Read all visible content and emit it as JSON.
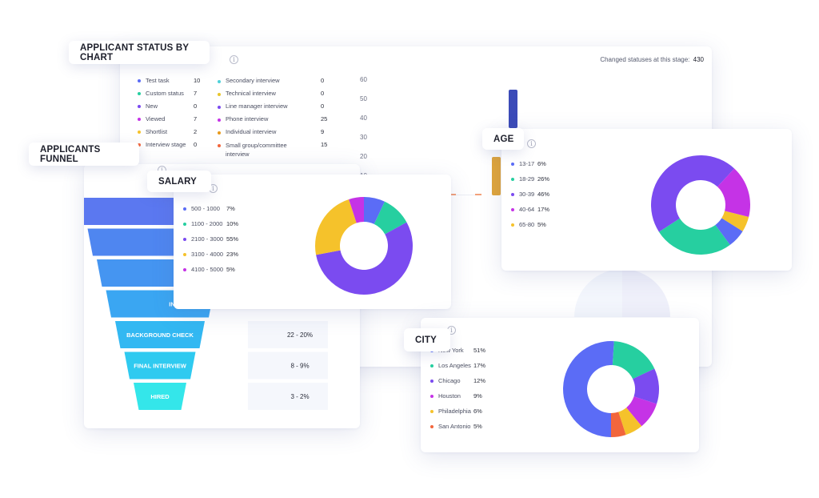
{
  "applicant_status": {
    "tag": "APPLICANT STATUS BY CHART",
    "changed_label": "Changed statuses at this stage:",
    "changed_value": "430",
    "left_items": [
      {
        "label": "Test task",
        "value": "10",
        "color": "#5b6cf6"
      },
      {
        "label": "Custom status",
        "value": "7",
        "color": "#26cfa0"
      },
      {
        "label": "New",
        "value": "0",
        "color": "#7b4bf0"
      },
      {
        "label": "Viewed",
        "value": "7",
        "color": "#c533e6"
      },
      {
        "label": "Shortlist",
        "value": "2",
        "color": "#f5c22b"
      },
      {
        "label": "Interview stage",
        "value": "0",
        "color": "#f2663c"
      }
    ],
    "right_items": [
      {
        "label": "Secondary interview",
        "value": "0",
        "color": "#4fd1d9"
      },
      {
        "label": "Technical interview",
        "value": "0",
        "color": "#e8c62c"
      },
      {
        "label": "Line manager interview",
        "value": "0",
        "color": "#7b4bf0"
      },
      {
        "label": "Phone interview",
        "value": "25",
        "color": "#c533e6"
      },
      {
        "label": "Individual interview",
        "value": "9",
        "color": "#e89a1c"
      },
      {
        "label": "Small group/committee interview",
        "value": "15",
        "color": "#f2663c"
      }
    ],
    "y_ticks": [
      "60",
      "50",
      "40",
      "30",
      "20",
      "10"
    ]
  },
  "funnel": {
    "tag": "APPLICANTS FUNNEL",
    "stages": [
      {
        "label": "",
        "value": ""
      },
      {
        "label": "",
        "value": ""
      },
      {
        "label": "",
        "value": ""
      },
      {
        "label": "IN",
        "value": ""
      },
      {
        "label": "BACKGROUND CHECK",
        "value": "22 - 20%"
      },
      {
        "label": "FINAL INTERVIEW",
        "value": "8 - 9%"
      },
      {
        "label": "HIRED",
        "value": "3 - 2%"
      }
    ]
  },
  "salary": {
    "tag": "SALARY",
    "items": [
      {
        "label": "500 - 1000",
        "value": "7%",
        "color": "#5b6cf6"
      },
      {
        "label": "1100 - 2000",
        "value": "10%",
        "color": "#26cfa0"
      },
      {
        "label": "2100 - 3000",
        "value": "55%",
        "color": "#7b4bf0"
      },
      {
        "label": "3100 - 4000",
        "value": "23%",
        "color": "#f5c22b"
      },
      {
        "label": "4100 - 5000",
        "value": "5%",
        "color": "#c533e6"
      }
    ]
  },
  "age": {
    "tag": "AGE",
    "items": [
      {
        "label": "13-17",
        "value": "6%",
        "color": "#5b6cf6"
      },
      {
        "label": "18-29",
        "value": "26%",
        "color": "#26cfa0"
      },
      {
        "label": "30-39",
        "value": "46%",
        "color": "#7b4bf0"
      },
      {
        "label": "40-64",
        "value": "17%",
        "color": "#c533e6"
      },
      {
        "label": "65-80",
        "value": "5%",
        "color": "#f5c22b"
      }
    ]
  },
  "city": {
    "tag": "CITY",
    "items": [
      {
        "label": "New York",
        "value": "51%",
        "color": "#5b6cf6"
      },
      {
        "label": "Los Angeles",
        "value": "17%",
        "color": "#26cfa0"
      },
      {
        "label": "Chicago",
        "value": "12%",
        "color": "#7b4bf0"
      },
      {
        "label": "Houston",
        "value": "9%",
        "color": "#c533e6"
      },
      {
        "label": "Philadelphia",
        "value": "6%",
        "color": "#f5c22b"
      },
      {
        "label": "San Antonio",
        "value": "5%",
        "color": "#f2663c"
      }
    ]
  },
  "chart_data": [
    {
      "type": "pie",
      "categories": [
        "500 - 1000",
        "1100 - 2000",
        "2100 - 3000",
        "3100 - 4000",
        "4100 - 5000"
      ],
      "values": [
        7,
        10,
        55,
        23,
        5
      ],
      "title": "SALARY"
    },
    {
      "type": "pie",
      "categories": [
        "13-17",
        "18-29",
        "30-39",
        "40-64",
        "65-80"
      ],
      "values": [
        6,
        26,
        46,
        17,
        5
      ],
      "title": "AGE"
    },
    {
      "type": "pie",
      "categories": [
        "New York",
        "Los Angeles",
        "Chicago",
        "Houston",
        "Philadelphia",
        "San Antonio"
      ],
      "values": [
        51,
        17,
        12,
        9,
        6,
        5
      ],
      "title": "CITY"
    }
  ]
}
